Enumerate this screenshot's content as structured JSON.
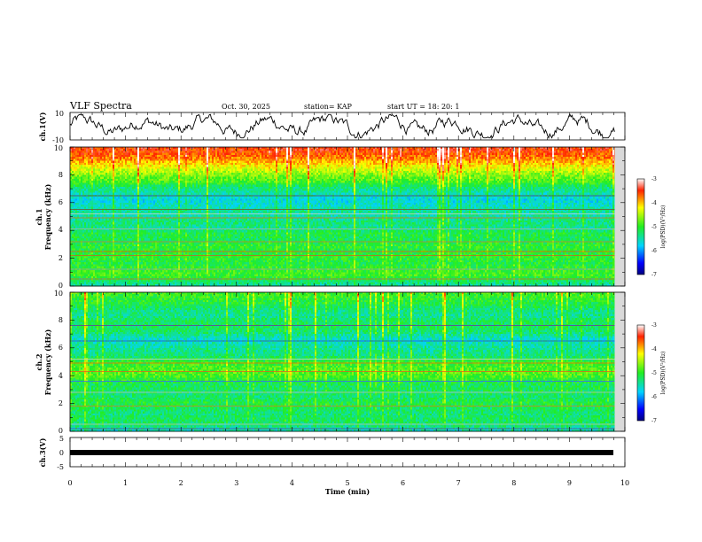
{
  "header": {
    "title": "VLF Spectra",
    "date": "Oct. 30, 2025",
    "station": "station= KAP",
    "start": "start UT = 18: 20: 1"
  },
  "chart_data": [
    {
      "id": "ch1-waveform",
      "type": "line",
      "ylabel": "ch.1(V)",
      "ylim": [
        -10,
        10
      ],
      "yticks": [
        "10",
        "-10"
      ],
      "description": "time-domain voltage trace, noisy oscillation"
    },
    {
      "id": "ch1-spectrogram",
      "type": "heatmap",
      "ylabel_top": "ch.1",
      "ylabel": "Frequency (kHz)",
      "ylim": [
        0,
        10
      ],
      "yticks": [
        "0",
        "2",
        "4",
        "6",
        "8",
        "10"
      ],
      "colorbar": {
        "label": "log(PSD)(V²/Hz)",
        "range": [
          -7,
          -3
        ],
        "ticks": [
          "-3",
          "-4",
          "-5",
          "-6",
          "-7"
        ]
      },
      "profile_log_psd": [
        -5.5,
        -5.2,
        -4.9,
        -5.0,
        -5.1,
        -5.0,
        -5.1,
        -5.0,
        -5.2,
        -5.1,
        -5.4,
        -5.3,
        -5.5,
        -5.4,
        -5.6,
        -5.7,
        -5.5,
        -5.3,
        -4.9,
        -4.7,
        -4.4,
        -4.1,
        -3.8,
        -3.6,
        -3.5
      ]
    },
    {
      "id": "ch2-spectrogram",
      "type": "heatmap",
      "ylabel_top": "ch.2",
      "ylabel": "Frequency (kHz)",
      "ylim": [
        0,
        10
      ],
      "yticks": [
        "0",
        "2",
        "4",
        "6",
        "8",
        "10"
      ],
      "colorbar": {
        "label": "log(PSD)(V²/Hz)",
        "range": [
          -7,
          -3
        ],
        "ticks": [
          "-3",
          "-4",
          "-5",
          "-6",
          "-7"
        ]
      },
      "profile_log_psd": [
        -5.6,
        -5.3,
        -5.2,
        -5.3,
        -5.2,
        -5.1,
        -5.3,
        -5.2,
        -5.2,
        -5.0,
        -4.8,
        -4.9,
        -5.0,
        -5.3,
        -5.4,
        -5.5,
        -5.6,
        -5.3,
        -5.2,
        -5.2,
        -5.4,
        -5.3,
        -5.1,
        -5.0,
        -4.9
      ]
    },
    {
      "id": "ch3-waveform",
      "type": "line",
      "ylabel": "ch.3(V)",
      "ylim": [
        -5,
        5
      ],
      "yticks": [
        "5",
        "0",
        "-5"
      ],
      "description": "flat thick trace near -1 V"
    }
  ],
  "x_axis": {
    "label": "Time (min)",
    "range": [
      0,
      10
    ],
    "ticks": [
      "0",
      "1",
      "2",
      "3",
      "4",
      "5",
      "6",
      "7",
      "8",
      "9",
      "10"
    ],
    "data_end": 9.82
  }
}
